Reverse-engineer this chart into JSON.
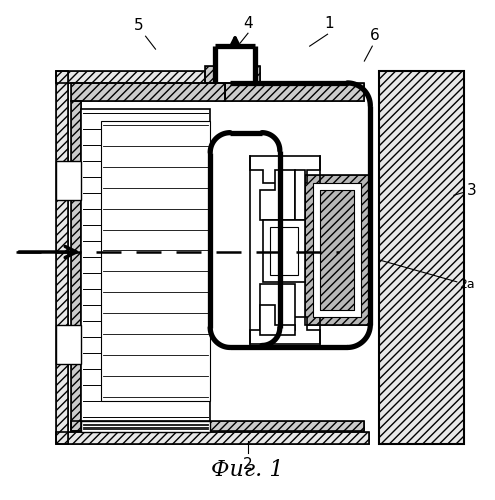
{
  "title": "Фиг. 1",
  "title_fontsize": 16,
  "bg": "#ffffff",
  "col": "#000000"
}
